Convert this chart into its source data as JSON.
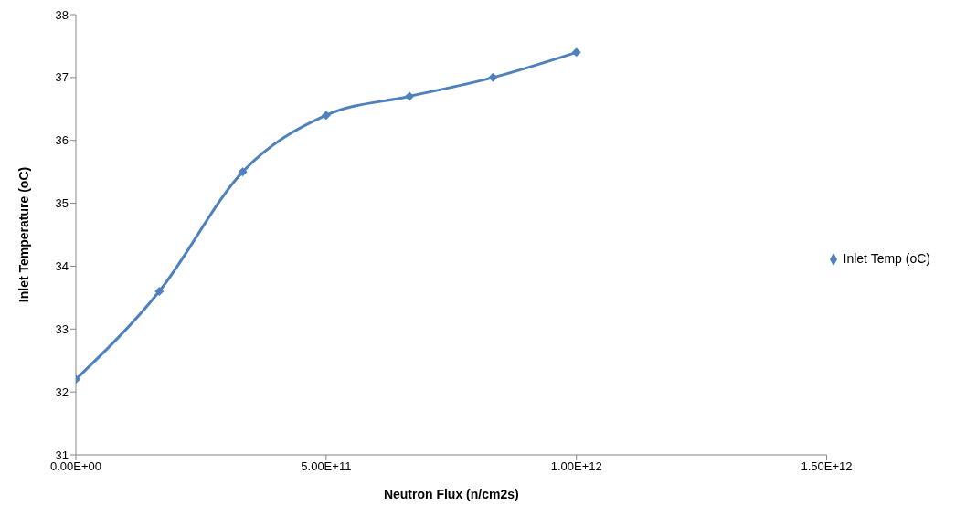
{
  "chart_data": {
    "type": "line",
    "xlabel": "Neutron Flux (n/cm2s)",
    "ylabel": "Inlet Temperature (oC)",
    "x": [
      0,
      166700000000,
      333300000000,
      500000000000,
      666700000000,
      833300000000,
      1000000000000
    ],
    "series": [
      {
        "name": "Inlet Temp (oC)",
        "color": "#4f81bd",
        "values": [
          32.2,
          33.6,
          35.5,
          36.4,
          36.7,
          37.0,
          37.4
        ]
      }
    ],
    "xlim": [
      0,
      1500000000000
    ],
    "xticks": [
      {
        "value": 0,
        "label": "0.00E+00"
      },
      {
        "value": 500000000000,
        "label": "5.00E+11"
      },
      {
        "value": 1000000000000,
        "label": "1.00E+12"
      },
      {
        "value": 1500000000000,
        "label": "1.50E+12"
      }
    ],
    "ylim": [
      31,
      38
    ],
    "yticks": [
      31,
      32,
      33,
      34,
      35,
      36,
      37,
      38
    ],
    "grid": false,
    "legend": "right",
    "marker": "diamond",
    "line_style": "solid"
  }
}
